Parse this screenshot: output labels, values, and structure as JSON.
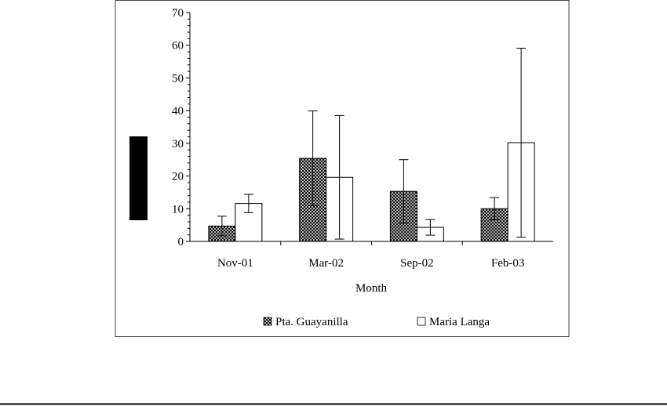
{
  "chart_data": {
    "type": "bar",
    "title": "",
    "xlabel": "Month",
    "ylabel": "",
    "ylim": [
      0,
      70
    ],
    "yticks": [
      0,
      10,
      20,
      30,
      40,
      50,
      60,
      70
    ],
    "categories": [
      "Nov-01",
      "Mar-02",
      "Sep-02",
      "Feb-03"
    ],
    "grid": false,
    "legend_position": "bottom",
    "series": [
      {
        "name": "Pta. Guayanilla",
        "fill": "crosshatch",
        "values": [
          4.7,
          25.4,
          15.3,
          10.0
        ],
        "error": [
          3.0,
          14.5,
          9.7,
          3.4
        ]
      },
      {
        "name": "Maria Langa",
        "fill": "#ffffff",
        "values": [
          11.6,
          19.6,
          4.3,
          30.2
        ],
        "error": [
          2.8,
          18.9,
          2.4,
          28.9
        ]
      }
    ]
  }
}
